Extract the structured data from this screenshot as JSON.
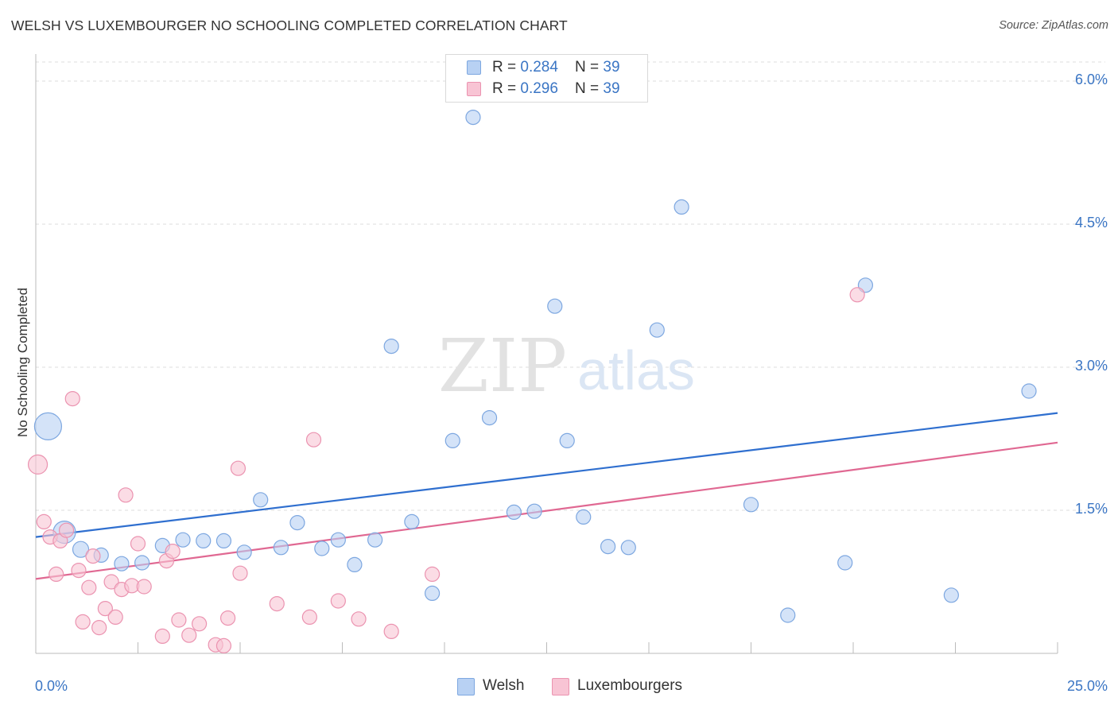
{
  "header": {
    "title": "WELSH VS LUXEMBOURGER NO SCHOOLING COMPLETED CORRELATION CHART",
    "source": "Source: ZipAtlas.com"
  },
  "watermark": {
    "zip": "ZIP",
    "atlas": "atlas"
  },
  "legend_top": {
    "rows": [
      {
        "r_label": "R = ",
        "r_value": "0.284",
        "n_label": "N = ",
        "n_value": "39"
      },
      {
        "r_label": "R = ",
        "r_value": "0.296",
        "n_label": "N = ",
        "n_value": "39"
      }
    ]
  },
  "legend_bottom": {
    "items": [
      "Welsh",
      "Luxembourgers"
    ]
  },
  "colors": {
    "welsh_fill": "#b8d1f3",
    "welsh_stroke": "#7da7e0",
    "welsh_line": "#2f6fcf",
    "lux_fill": "#f8c4d4",
    "lux_stroke": "#eb93b0",
    "lux_line": "#e06892",
    "axis_text": "#3a75c4",
    "grid": "#dddddd"
  },
  "chart_data": {
    "type": "scatter",
    "title": "WELSH VS LUXEMBOURGER NO SCHOOLING COMPLETED CORRELATION CHART",
    "xlabel": "",
    "ylabel": "No Schooling Completed",
    "xlim": [
      0,
      25
    ],
    "ylim": [
      0,
      6.2
    ],
    "x_tick_labels": [
      "0.0%",
      "25.0%"
    ],
    "y_ticks": [
      1.5,
      3.0,
      4.5,
      6.0
    ],
    "y_tick_labels": [
      "1.5%",
      "3.0%",
      "4.5%",
      "6.0%"
    ],
    "grid": "horizontal dashed",
    "legend_position": "top-center and bottom",
    "series": [
      {
        "name": "Welsh",
        "R": 0.284,
        "N": 39,
        "trend": [
          [
            0,
            1.22
          ],
          [
            25,
            2.52
          ]
        ],
        "points": [
          {
            "x": 0.3,
            "y": 2.38,
            "s": 17
          },
          {
            "x": 0.7,
            "y": 1.27,
            "s": 14
          },
          {
            "x": 1.1,
            "y": 1.09,
            "s": 10
          },
          {
            "x": 1.6,
            "y": 1.03,
            "s": 9
          },
          {
            "x": 2.1,
            "y": 0.94,
            "s": 9
          },
          {
            "x": 2.6,
            "y": 0.95,
            "s": 9
          },
          {
            "x": 3.1,
            "y": 1.13,
            "s": 9
          },
          {
            "x": 3.6,
            "y": 1.19,
            "s": 9
          },
          {
            "x": 4.1,
            "y": 1.18,
            "s": 9
          },
          {
            "x": 4.6,
            "y": 1.18,
            "s": 9
          },
          {
            "x": 5.1,
            "y": 1.06,
            "s": 9
          },
          {
            "x": 5.5,
            "y": 1.61,
            "s": 9
          },
          {
            "x": 6.0,
            "y": 1.11,
            "s": 9
          },
          {
            "x": 6.4,
            "y": 1.37,
            "s": 9
          },
          {
            "x": 7.0,
            "y": 1.1,
            "s": 9
          },
          {
            "x": 7.4,
            "y": 1.19,
            "s": 9
          },
          {
            "x": 7.8,
            "y": 0.93,
            "s": 9
          },
          {
            "x": 8.3,
            "y": 1.19,
            "s": 9
          },
          {
            "x": 8.7,
            "y": 3.22,
            "s": 9
          },
          {
            "x": 9.2,
            "y": 1.38,
            "s": 9
          },
          {
            "x": 9.7,
            "y": 0.63,
            "s": 9
          },
          {
            "x": 10.2,
            "y": 2.23,
            "s": 9
          },
          {
            "x": 10.7,
            "y": 5.62,
            "s": 9
          },
          {
            "x": 11.1,
            "y": 2.47,
            "s": 9
          },
          {
            "x": 11.7,
            "y": 1.48,
            "s": 9
          },
          {
            "x": 12.2,
            "y": 1.49,
            "s": 9
          },
          {
            "x": 12.7,
            "y": 3.64,
            "s": 9
          },
          {
            "x": 13.0,
            "y": 2.23,
            "s": 9
          },
          {
            "x": 13.4,
            "y": 1.43,
            "s": 9
          },
          {
            "x": 14.0,
            "y": 1.12,
            "s": 9
          },
          {
            "x": 14.5,
            "y": 1.11,
            "s": 9
          },
          {
            "x": 15.2,
            "y": 3.39,
            "s": 9
          },
          {
            "x": 15.8,
            "y": 4.68,
            "s": 9
          },
          {
            "x": 17.5,
            "y": 1.56,
            "s": 9
          },
          {
            "x": 18.4,
            "y": 0.4,
            "s": 9
          },
          {
            "x": 19.8,
            "y": 0.95,
            "s": 9
          },
          {
            "x": 20.3,
            "y": 3.86,
            "s": 9
          },
          {
            "x": 22.4,
            "y": 0.61,
            "s": 9
          },
          {
            "x": 24.3,
            "y": 2.75,
            "s": 9
          }
        ]
      },
      {
        "name": "Luxembourgers",
        "R": 0.296,
        "N": 39,
        "trend": [
          [
            0,
            0.78
          ],
          [
            25,
            2.21
          ]
        ],
        "points": [
          {
            "x": 0.05,
            "y": 1.98,
            "s": 12
          },
          {
            "x": 0.2,
            "y": 1.38,
            "s": 9
          },
          {
            "x": 0.35,
            "y": 1.22,
            "s": 9
          },
          {
            "x": 0.5,
            "y": 0.83,
            "s": 9
          },
          {
            "x": 0.6,
            "y": 1.18,
            "s": 9
          },
          {
            "x": 0.75,
            "y": 1.29,
            "s": 9
          },
          {
            "x": 0.9,
            "y": 2.67,
            "s": 9
          },
          {
            "x": 1.05,
            "y": 0.87,
            "s": 9
          },
          {
            "x": 1.15,
            "y": 0.33,
            "s": 9
          },
          {
            "x": 1.3,
            "y": 0.69,
            "s": 9
          },
          {
            "x": 1.4,
            "y": 1.02,
            "s": 9
          },
          {
            "x": 1.55,
            "y": 0.27,
            "s": 9
          },
          {
            "x": 1.7,
            "y": 0.47,
            "s": 9
          },
          {
            "x": 1.85,
            "y": 0.75,
            "s": 9
          },
          {
            "x": 1.95,
            "y": 0.38,
            "s": 9
          },
          {
            "x": 2.1,
            "y": 0.67,
            "s": 9
          },
          {
            "x": 2.2,
            "y": 1.66,
            "s": 9
          },
          {
            "x": 2.35,
            "y": 0.71,
            "s": 9
          },
          {
            "x": 2.5,
            "y": 1.15,
            "s": 9
          },
          {
            "x": 2.65,
            "y": 0.7,
            "s": 9
          },
          {
            "x": 3.1,
            "y": 0.18,
            "s": 9
          },
          {
            "x": 3.2,
            "y": 0.97,
            "s": 9
          },
          {
            "x": 3.35,
            "y": 1.07,
            "s": 9
          },
          {
            "x": 3.5,
            "y": 0.35,
            "s": 9
          },
          {
            "x": 3.75,
            "y": 0.19,
            "s": 9
          },
          {
            "x": 4.0,
            "y": 0.31,
            "s": 9
          },
          {
            "x": 4.4,
            "y": 0.09,
            "s": 9
          },
          {
            "x": 4.6,
            "y": 0.08,
            "s": 9
          },
          {
            "x": 4.7,
            "y": 0.37,
            "s": 9
          },
          {
            "x": 4.95,
            "y": 1.94,
            "s": 9
          },
          {
            "x": 5.0,
            "y": 0.84,
            "s": 9
          },
          {
            "x": 5.9,
            "y": 0.52,
            "s": 9
          },
          {
            "x": 6.7,
            "y": 0.38,
            "s": 9
          },
          {
            "x": 6.8,
            "y": 2.24,
            "s": 9
          },
          {
            "x": 7.4,
            "y": 0.55,
            "s": 9
          },
          {
            "x": 7.9,
            "y": 0.36,
            "s": 9
          },
          {
            "x": 8.7,
            "y": 0.23,
            "s": 9
          },
          {
            "x": 9.7,
            "y": 0.83,
            "s": 9
          },
          {
            "x": 20.1,
            "y": 3.76,
            "s": 9
          }
        ]
      }
    ]
  }
}
